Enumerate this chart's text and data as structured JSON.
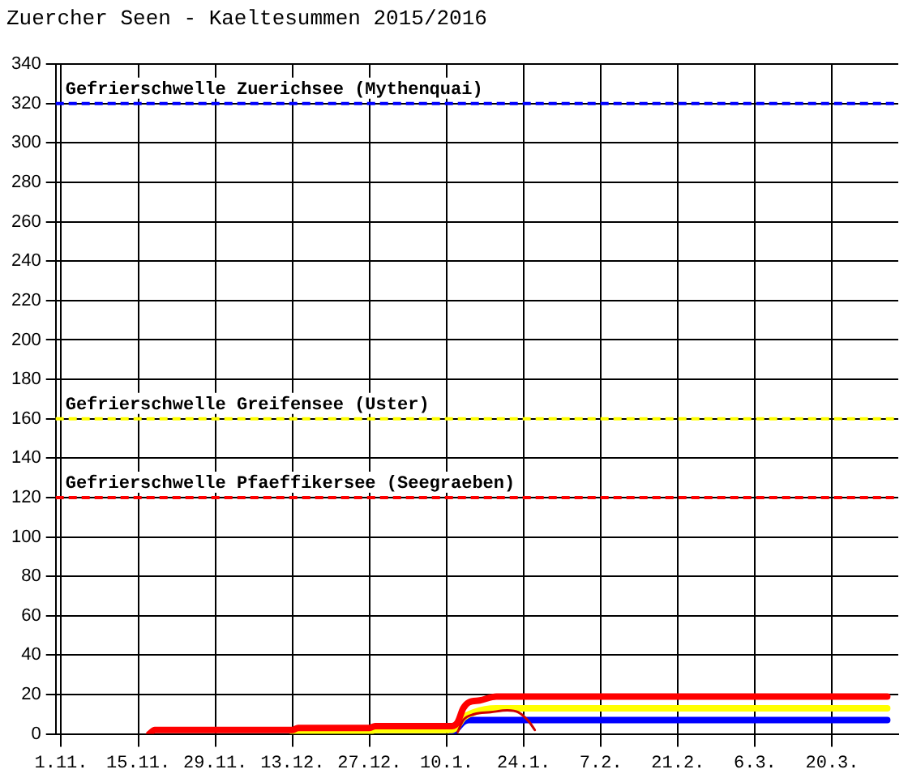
{
  "chart_data": {
    "type": "line",
    "title": "Zuercher Seen - Kaeltesummen 2015/2016",
    "xlim": [
      "2015-10-31",
      "2016-04-01"
    ],
    "xticks": [
      {
        "value": "2015-11-01",
        "label": "1.11."
      },
      {
        "value": "2015-11-15",
        "label": "15.11."
      },
      {
        "value": "2015-11-29",
        "label": "29.11."
      },
      {
        "value": "2015-12-13",
        "label": "13.12."
      },
      {
        "value": "2015-12-27",
        "label": "27.12."
      },
      {
        "value": "2016-01-10",
        "label": "10.1."
      },
      {
        "value": "2016-01-24",
        "label": "24.1."
      },
      {
        "value": "2016-02-07",
        "label": "7.2."
      },
      {
        "value": "2016-02-21",
        "label": "21.2."
      },
      {
        "value": "2016-03-06",
        "label": "6.3."
      },
      {
        "value": "2016-03-20",
        "label": "20.3."
      }
    ],
    "ylim": [
      0,
      340
    ],
    "yticks": [
      0,
      20,
      40,
      60,
      80,
      100,
      120,
      140,
      160,
      180,
      200,
      220,
      240,
      260,
      280,
      300,
      320,
      340
    ],
    "grid": true,
    "legend": false,
    "marker": "none",
    "line_style": "solid",
    "series": [
      {
        "color": "#ff0000",
        "x": [
          "2015-11-17",
          "2015-11-18",
          "2015-12-13",
          "2015-12-14",
          "2015-12-27",
          "2015-12-28",
          "2016-01-11",
          "2016-01-12",
          "2016-01-13",
          "2016-01-14",
          "2016-01-16",
          "2016-01-19",
          "2016-03-30"
        ],
        "values": [
          0,
          2,
          2,
          3,
          3,
          4,
          4,
          6,
          13,
          16,
          17,
          19,
          19
        ]
      },
      {
        "color": "#ffff00",
        "x": [
          "2015-12-13",
          "2015-12-27",
          "2015-12-28",
          "2016-01-11",
          "2016-01-12",
          "2016-01-13",
          "2016-01-15",
          "2016-01-19",
          "2016-03-30"
        ],
        "values": [
          1,
          1,
          2,
          2,
          4,
          8,
          11,
          13,
          13
        ]
      },
      {
        "color": "#0000ff",
        "x": [
          "2016-01-11",
          "2016-01-12",
          "2016-01-13",
          "2016-01-14",
          "2016-03-30"
        ],
        "values": [
          0,
          3,
          6,
          7,
          7
        ]
      },
      {
        "color": "#cc0000",
        "x": [
          "2016-01-12",
          "2016-01-13",
          "2016-01-15",
          "2016-01-18",
          "2016-01-21",
          "2016-01-23",
          "2016-01-25",
          "2016-01-26"
        ],
        "values": [
          1,
          7,
          10,
          11,
          12,
          11,
          6,
          2
        ]
      }
    ],
    "ref_lines": [
      {
        "axis": "y",
        "value": 320,
        "label": "Gefrierschwelle Zuerichsee (Mythenquai)",
        "color": "#0000ff",
        "line_style": "dashed"
      },
      {
        "axis": "y",
        "value": 160,
        "label": "Gefrierschwelle Greifensee (Uster)",
        "color": "#ffff00",
        "line_style": "dashed"
      },
      {
        "axis": "y",
        "value": 120,
        "label": "Gefrierschwelle Pfaeffikersee (Seegraeben)",
        "color": "#ff0000",
        "line_style": "dashed"
      }
    ]
  }
}
